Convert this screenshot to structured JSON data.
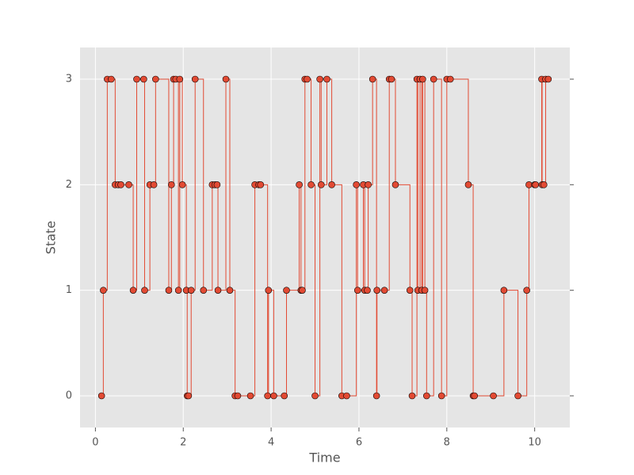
{
  "chart_data": {
    "type": "step",
    "xlabel": "Time",
    "ylabel": "State",
    "x": [
      0.14,
      0.18,
      0.27,
      0.36,
      0.45,
      0.52,
      0.58,
      0.76,
      0.86,
      0.94,
      1.1,
      1.12,
      1.24,
      1.33,
      1.37,
      1.67,
      1.73,
      1.78,
      1.83,
      1.89,
      1.92,
      1.98,
      2.07,
      2.09,
      2.12,
      2.18,
      2.27,
      2.46,
      2.66,
      2.72,
      2.77,
      2.79,
      2.97,
      3.06,
      3.18,
      3.24,
      3.53,
      3.63,
      3.72,
      3.76,
      3.92,
      3.94,
      4.06,
      4.3,
      4.35,
      4.64,
      4.68,
      4.71,
      4.77,
      4.82,
      4.91,
      5.0,
      5.11,
      5.14,
      5.27,
      5.38,
      5.61,
      5.72,
      5.94,
      5.97,
      6.1,
      6.13,
      6.19,
      6.21,
      6.31,
      6.4,
      6.41,
      6.58,
      6.69,
      6.74,
      6.83,
      7.16,
      7.21,
      7.32,
      7.34,
      7.39,
      7.43,
      7.45,
      7.5,
      7.54,
      7.7,
      7.88,
      8.0,
      8.08,
      8.49,
      8.6,
      8.63,
      9.06,
      9.3,
      9.62,
      9.82,
      9.87,
      10.0,
      10.02,
      10.16,
      10.17,
      10.21,
      10.25,
      10.31
    ],
    "values": [
      0,
      1,
      3,
      3,
      2,
      2,
      2,
      2,
      1,
      3,
      3,
      1,
      2,
      2,
      3,
      1,
      2,
      3,
      3,
      1,
      3,
      2,
      1,
      0,
      0,
      1,
      3,
      1,
      2,
      2,
      2,
      1,
      3,
      1,
      0,
      0,
      0,
      2,
      2,
      2,
      0,
      1,
      0,
      0,
      1,
      2,
      1,
      1,
      3,
      3,
      2,
      0,
      3,
      2,
      3,
      2,
      0,
      0,
      2,
      1,
      2,
      1,
      1,
      2,
      3,
      0,
      1,
      1,
      3,
      3,
      2,
      1,
      0,
      3,
      1,
      3,
      1,
      3,
      1,
      0,
      3,
      0,
      3,
      3,
      2,
      0,
      0,
      0,
      1,
      0,
      1,
      2,
      2,
      2,
      3,
      2,
      2,
      3,
      3
    ],
    "color": "#e24a33",
    "xlim": [
      -0.35,
      10.8
    ],
    "ylim": [
      -0.3,
      3.3
    ],
    "xticks": [
      0,
      2,
      4,
      6,
      8,
      10
    ],
    "yticks": [
      0,
      1,
      2,
      3
    ],
    "grid": true
  }
}
